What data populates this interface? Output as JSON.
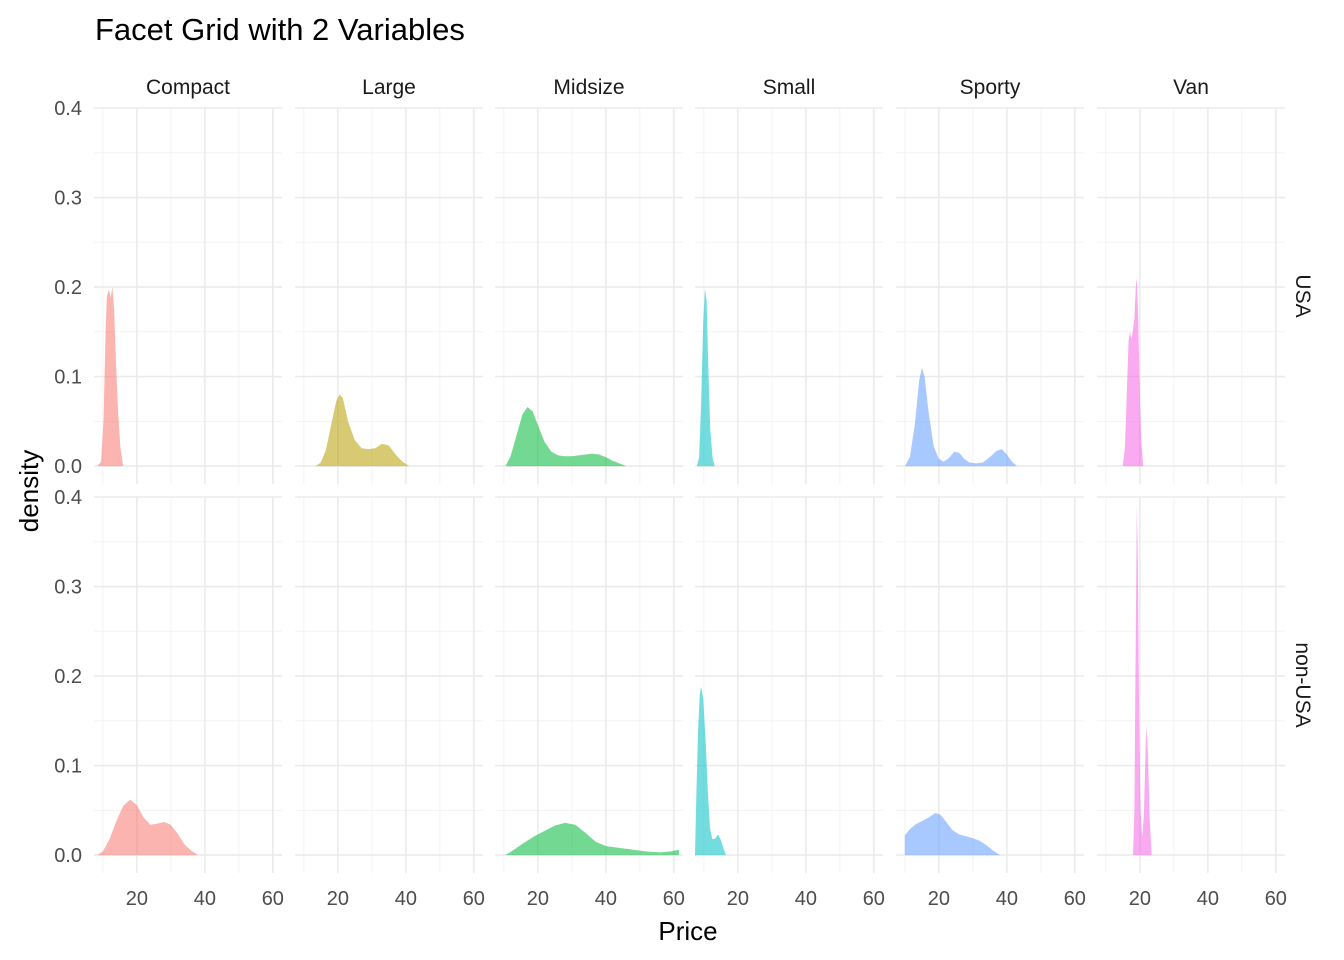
{
  "chart_data": {
    "type": "area",
    "title": "Facet Grid with 2 Variables",
    "xlabel": "Price",
    "ylabel": "density",
    "xlim": [
      7.4,
      62.7
    ],
    "ylim": [
      -0.02,
      0.4
    ],
    "x_ticks": [
      20,
      40,
      60
    ],
    "y_ticks": [
      0.0,
      0.1,
      0.2,
      0.3,
      0.4
    ],
    "y_tick_labels": [
      "0.0",
      "0.1",
      "0.2",
      "0.3",
      "0.4"
    ],
    "grid": true,
    "legend": "none",
    "facet_columns": [
      "Compact",
      "Large",
      "Midsize",
      "Small",
      "Sporty",
      "Van"
    ],
    "facet_rows": [
      "USA",
      "non-USA"
    ],
    "colors": {
      "Compact": "#F8766D",
      "Large": "#B79F00",
      "Midsize": "#00BA38",
      "Small": "#00BFC4",
      "Sporty": "#619CFF",
      "Van": "#F564E3"
    },
    "panels": [
      {
        "col": "Compact",
        "row": "USA",
        "points": [
          [
            8.4,
            0.0
          ],
          [
            9.5,
            0.005
          ],
          [
            10.2,
            0.05
          ],
          [
            10.8,
            0.15
          ],
          [
            11.2,
            0.19
          ],
          [
            11.8,
            0.197
          ],
          [
            12.3,
            0.188
          ],
          [
            12.8,
            0.2
          ],
          [
            13.3,
            0.175
          ],
          [
            13.8,
            0.12
          ],
          [
            14.5,
            0.06
          ],
          [
            15.2,
            0.02
          ],
          [
            16.0,
            0.0
          ]
        ]
      },
      {
        "col": "Large",
        "row": "USA",
        "points": [
          [
            13.5,
            0.0
          ],
          [
            15,
            0.004
          ],
          [
            16.5,
            0.018
          ],
          [
            18,
            0.045
          ],
          [
            19.5,
            0.072
          ],
          [
            20.5,
            0.08
          ],
          [
            21.5,
            0.076
          ],
          [
            23,
            0.05
          ],
          [
            25,
            0.029
          ],
          [
            27,
            0.02
          ],
          [
            29,
            0.019
          ],
          [
            31,
            0.02
          ],
          [
            33,
            0.025
          ],
          [
            35,
            0.023
          ],
          [
            37,
            0.013
          ],
          [
            39,
            0.005
          ],
          [
            41,
            0.0
          ]
        ]
      },
      {
        "col": "Midsize",
        "row": "USA",
        "points": [
          [
            10.5,
            0.0
          ],
          [
            12,
            0.011
          ],
          [
            14,
            0.038
          ],
          [
            15.5,
            0.058
          ],
          [
            17,
            0.066
          ],
          [
            18.5,
            0.061
          ],
          [
            20,
            0.046
          ],
          [
            22,
            0.027
          ],
          [
            24,
            0.016
          ],
          [
            26,
            0.012
          ],
          [
            28,
            0.011
          ],
          [
            30,
            0.011
          ],
          [
            32,
            0.012
          ],
          [
            34,
            0.013
          ],
          [
            36,
            0.014
          ],
          [
            38,
            0.013
          ],
          [
            40,
            0.01
          ],
          [
            42,
            0.006
          ],
          [
            44,
            0.003
          ],
          [
            46,
            0.0
          ]
        ]
      },
      {
        "col": "Small",
        "row": "USA",
        "points": [
          [
            8.0,
            0.0
          ],
          [
            8.6,
            0.01
          ],
          [
            9.2,
            0.07
          ],
          [
            9.8,
            0.16
          ],
          [
            10.3,
            0.198
          ],
          [
            10.8,
            0.185
          ],
          [
            11.3,
            0.11
          ],
          [
            11.9,
            0.04
          ],
          [
            12.6,
            0.008
          ],
          [
            13.2,
            0.0
          ]
        ]
      },
      {
        "col": "Sporty",
        "row": "USA",
        "points": [
          [
            10,
            0.0
          ],
          [
            11.5,
            0.01
          ],
          [
            13,
            0.048
          ],
          [
            14.2,
            0.095
          ],
          [
            15,
            0.11
          ],
          [
            15.8,
            0.1
          ],
          [
            17,
            0.06
          ],
          [
            18.5,
            0.022
          ],
          [
            20,
            0.008
          ],
          [
            21.5,
            0.005
          ],
          [
            23,
            0.009
          ],
          [
            24.5,
            0.016
          ],
          [
            26,
            0.015
          ],
          [
            27.5,
            0.008
          ],
          [
            29,
            0.004
          ],
          [
            31,
            0.003
          ],
          [
            33,
            0.004
          ],
          [
            35,
            0.01
          ],
          [
            37,
            0.017
          ],
          [
            38.5,
            0.019
          ],
          [
            40,
            0.013
          ],
          [
            41.5,
            0.005
          ],
          [
            43,
            0.0
          ]
        ]
      },
      {
        "col": "Van",
        "row": "USA",
        "points": [
          [
            15.0,
            0.0
          ],
          [
            15.6,
            0.02
          ],
          [
            16.2,
            0.085
          ],
          [
            16.7,
            0.14
          ],
          [
            17.1,
            0.15
          ],
          [
            17.5,
            0.142
          ],
          [
            17.9,
            0.15
          ],
          [
            18.4,
            0.165
          ],
          [
            18.8,
            0.2
          ],
          [
            19.1,
            0.21
          ],
          [
            19.5,
            0.17
          ],
          [
            19.9,
            0.095
          ],
          [
            20.4,
            0.03
          ],
          [
            21,
            0.0
          ]
        ]
      },
      {
        "col": "Compact",
        "row": "non-USA",
        "points": [
          [
            8.4,
            0.0
          ],
          [
            10,
            0.004
          ],
          [
            12,
            0.018
          ],
          [
            14,
            0.038
          ],
          [
            16,
            0.055
          ],
          [
            18,
            0.062
          ],
          [
            20,
            0.056
          ],
          [
            22,
            0.042
          ],
          [
            24,
            0.034
          ],
          [
            26,
            0.035
          ],
          [
            28,
            0.037
          ],
          [
            30,
            0.034
          ],
          [
            32,
            0.024
          ],
          [
            34,
            0.012
          ],
          [
            36,
            0.005
          ],
          [
            38,
            0.0
          ]
        ]
      },
      {
        "col": "Midsize",
        "row": "non-USA",
        "points": [
          [
            10.5,
            0.0
          ],
          [
            13,
            0.006
          ],
          [
            16,
            0.014
          ],
          [
            19,
            0.021
          ],
          [
            22,
            0.027
          ],
          [
            25,
            0.033
          ],
          [
            28,
            0.036
          ],
          [
            31,
            0.034
          ],
          [
            34,
            0.025
          ],
          [
            37,
            0.015
          ],
          [
            40,
            0.01
          ],
          [
            44,
            0.008
          ],
          [
            48,
            0.006
          ],
          [
            52,
            0.004
          ],
          [
            56,
            0.003
          ],
          [
            59,
            0.004
          ],
          [
            61.5,
            0.006
          ],
          [
            61.5,
            0.0
          ]
        ]
      },
      {
        "col": "Small",
        "row": "non-USA",
        "points": [
          [
            7.4,
            0.0
          ],
          [
            7.8,
            0.07
          ],
          [
            8.3,
            0.14
          ],
          [
            8.8,
            0.18
          ],
          [
            9.2,
            0.188
          ],
          [
            9.8,
            0.175
          ],
          [
            10.5,
            0.13
          ],
          [
            11.2,
            0.07
          ],
          [
            11.8,
            0.03
          ],
          [
            12.5,
            0.018
          ],
          [
            13.2,
            0.018
          ],
          [
            14.2,
            0.023
          ],
          [
            15,
            0.017
          ],
          [
            15.8,
            0.007
          ],
          [
            16.5,
            0.0
          ]
        ]
      },
      {
        "col": "Sporty",
        "row": "non-USA",
        "points": [
          [
            10,
            0.0
          ],
          [
            10,
            0.022
          ],
          [
            11.5,
            0.029
          ],
          [
            13,
            0.034
          ],
          [
            15,
            0.038
          ],
          [
            17,
            0.042
          ],
          [
            19,
            0.047
          ],
          [
            20.5,
            0.045
          ],
          [
            22,
            0.038
          ],
          [
            24,
            0.028
          ],
          [
            26,
            0.023
          ],
          [
            28,
            0.021
          ],
          [
            30,
            0.019
          ],
          [
            32,
            0.016
          ],
          [
            34,
            0.011
          ],
          [
            36,
            0.005
          ],
          [
            38,
            0.0
          ]
        ]
      },
      {
        "col": "Van",
        "row": "non-USA",
        "points": [
          [
            18.0,
            0.0
          ],
          [
            18.4,
            0.05
          ],
          [
            18.8,
            0.25
          ],
          [
            19.1,
            0.39
          ],
          [
            19.4,
            0.33
          ],
          [
            19.8,
            0.15
          ],
          [
            20.2,
            0.05
          ],
          [
            20.7,
            0.02
          ],
          [
            21.2,
            0.045
          ],
          [
            21.7,
            0.12
          ],
          [
            22.0,
            0.145
          ],
          [
            22.4,
            0.11
          ],
          [
            22.9,
            0.04
          ],
          [
            23.5,
            0.0
          ]
        ]
      }
    ]
  }
}
